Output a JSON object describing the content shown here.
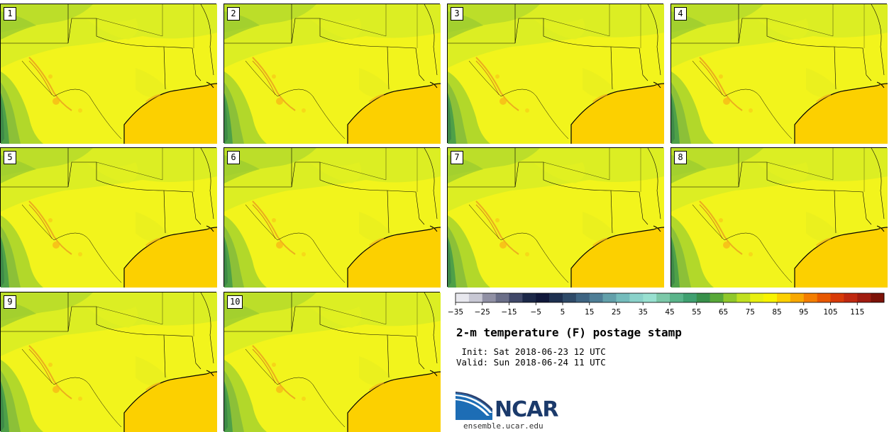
{
  "members": [
    {
      "label": "1"
    },
    {
      "label": "2"
    },
    {
      "label": "3"
    },
    {
      "label": "4"
    },
    {
      "label": "5"
    },
    {
      "label": "6"
    },
    {
      "label": "7"
    },
    {
      "label": "8"
    },
    {
      "label": "9"
    },
    {
      "label": "10"
    }
  ],
  "colorbar": {
    "tick_labels": [
      "−35",
      "−25",
      "−15",
      "−5",
      "5",
      "15",
      "25",
      "35",
      "45",
      "55",
      "65",
      "75",
      "85",
      "95",
      "105",
      "115"
    ],
    "colors": [
      "#e8e8ee",
      "#c8c8d4",
      "#9090a4",
      "#6a6e88",
      "#404868",
      "#1c2848",
      "#10183a",
      "#1e3050",
      "#2e4a68",
      "#3e6482",
      "#4e7e96",
      "#62a0aa",
      "#74bcbc",
      "#8ad2ca",
      "#98e0d0",
      "#7cc8a8",
      "#5ab48a",
      "#40a070",
      "#38904a",
      "#58a838",
      "#90c82a",
      "#c0e020",
      "#e8f010",
      "#f8f400",
      "#fcd000",
      "#f8a800",
      "#f47e00",
      "#e85800",
      "#d83a08",
      "#c02810",
      "#a01c10",
      "#7c1208"
    ]
  },
  "title": "2-m temperature (F) postage stamp",
  "init": " Init: Sat 2018-06-23 12 UTC",
  "valid": "Valid: Sun 2018-06-24 11 UTC",
  "logo": {
    "name": "NCAR",
    "url": "ensemble.ucar.edu"
  }
}
